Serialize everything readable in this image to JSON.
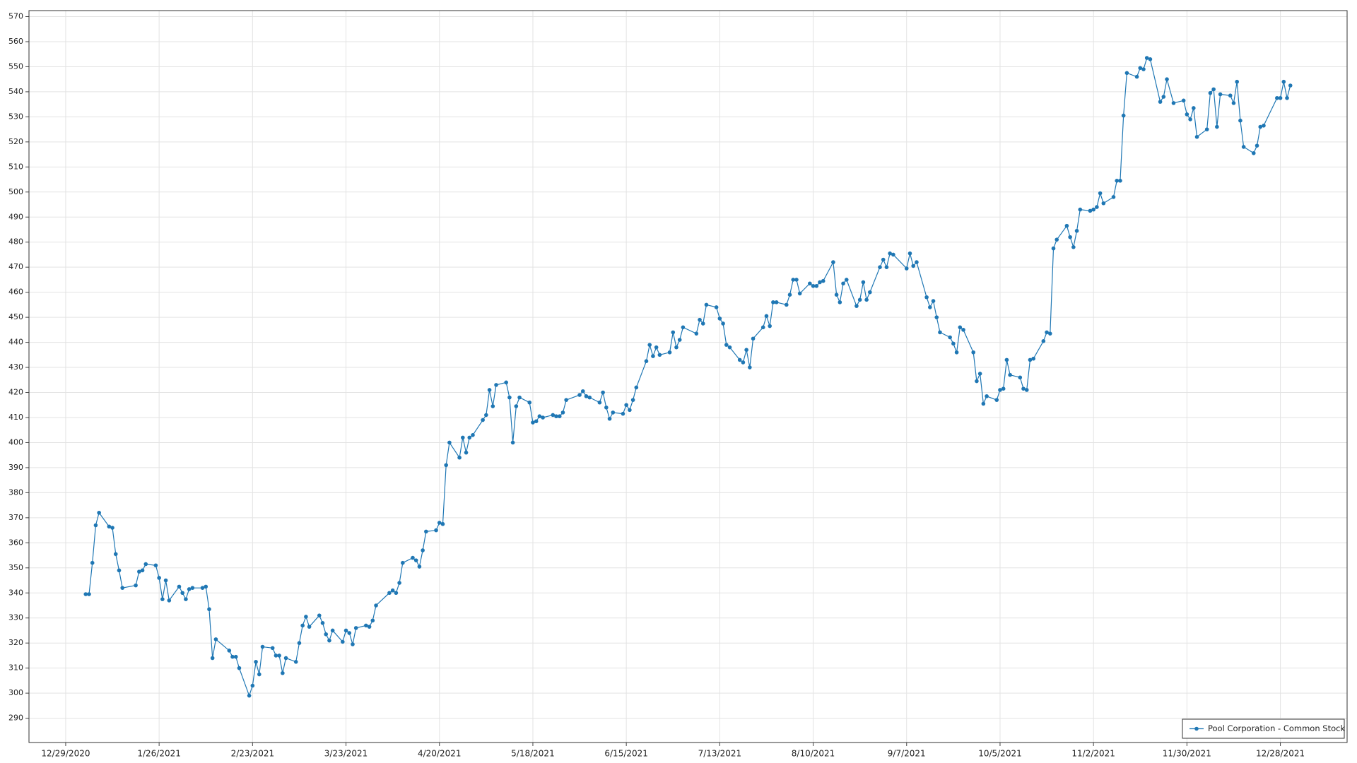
{
  "chart_data": {
    "type": "line",
    "x": [
      "1/4/2021",
      "1/5/2021",
      "1/6/2021",
      "1/7/2021",
      "1/8/2021",
      "1/11/2021",
      "1/12/2021",
      "1/13/2021",
      "1/14/2021",
      "1/15/2021",
      "1/19/2021",
      "1/20/2021",
      "1/21/2021",
      "1/22/2021",
      "1/25/2021",
      "1/26/2021",
      "1/27/2021",
      "1/28/2021",
      "1/29/2021",
      "2/1/2021",
      "2/2/2021",
      "2/3/2021",
      "2/4/2021",
      "2/5/2021",
      "2/8/2021",
      "2/9/2021",
      "2/10/2021",
      "2/11/2021",
      "2/12/2021",
      "2/16/2021",
      "2/17/2021",
      "2/18/2021",
      "2/19/2021",
      "2/22/2021",
      "2/23/2021",
      "2/24/2021",
      "2/25/2021",
      "2/26/2021",
      "3/1/2021",
      "3/2/2021",
      "3/3/2021",
      "3/4/2021",
      "3/5/2021",
      "3/8/2021",
      "3/9/2021",
      "3/10/2021",
      "3/11/2021",
      "3/12/2021",
      "3/15/2021",
      "3/16/2021",
      "3/17/2021",
      "3/18/2021",
      "3/19/2021",
      "3/22/2021",
      "3/23/2021",
      "3/24/2021",
      "3/25/2021",
      "3/26/2021",
      "3/29/2021",
      "3/30/2021",
      "3/31/2021",
      "4/1/2021",
      "4/5/2021",
      "4/6/2021",
      "4/7/2021",
      "4/8/2021",
      "4/9/2021",
      "4/12/2021",
      "4/13/2021",
      "4/14/2021",
      "4/15/2021",
      "4/16/2021",
      "4/19/2021",
      "4/20/2021",
      "4/21/2021",
      "4/22/2021",
      "4/23/2021",
      "4/26/2021",
      "4/27/2021",
      "4/28/2021",
      "4/29/2021",
      "4/30/2021",
      "5/3/2021",
      "5/4/2021",
      "5/5/2021",
      "5/6/2021",
      "5/7/2021",
      "5/10/2021",
      "5/11/2021",
      "5/12/2021",
      "5/13/2021",
      "5/14/2021",
      "5/17/2021",
      "5/18/2021",
      "5/19/2021",
      "5/20/2021",
      "5/21/2021",
      "5/24/2021",
      "5/25/2021",
      "5/26/2021",
      "5/27/2021",
      "5/28/2021",
      "6/1/2021",
      "6/2/2021",
      "6/3/2021",
      "6/4/2021",
      "6/7/2021",
      "6/8/2021",
      "6/9/2021",
      "6/10/2021",
      "6/11/2021",
      "6/14/2021",
      "6/15/2021",
      "6/16/2021",
      "6/17/2021",
      "6/18/2021",
      "6/21/2021",
      "6/22/2021",
      "6/23/2021",
      "6/24/2021",
      "6/25/2021",
      "6/28/2021",
      "6/29/2021",
      "6/30/2021",
      "7/1/2021",
      "7/2/2021",
      "7/6/2021",
      "7/7/2021",
      "7/8/2021",
      "7/9/2021",
      "7/12/2021",
      "7/13/2021",
      "7/14/2021",
      "7/15/2021",
      "7/16/2021",
      "7/19/2021",
      "7/20/2021",
      "7/21/2021",
      "7/22/2021",
      "7/23/2021",
      "7/26/2021",
      "7/27/2021",
      "7/28/2021",
      "7/29/2021",
      "7/30/2021",
      "8/2/2021",
      "8/3/2021",
      "8/4/2021",
      "8/5/2021",
      "8/6/2021",
      "8/9/2021",
      "8/10/2021",
      "8/11/2021",
      "8/12/2021",
      "8/13/2021",
      "8/16/2021",
      "8/17/2021",
      "8/18/2021",
      "8/19/2021",
      "8/20/2021",
      "8/23/2021",
      "8/24/2021",
      "8/25/2021",
      "8/26/2021",
      "8/27/2021",
      "8/30/2021",
      "8/31/2021",
      "9/1/2021",
      "9/2/2021",
      "9/3/2021",
      "9/7/2021",
      "9/8/2021",
      "9/9/2021",
      "9/10/2021",
      "9/13/2021",
      "9/14/2021",
      "9/15/2021",
      "9/16/2021",
      "9/17/2021",
      "9/20/2021",
      "9/21/2021",
      "9/22/2021",
      "9/23/2021",
      "9/24/2021",
      "9/27/2021",
      "9/28/2021",
      "9/29/2021",
      "9/30/2021",
      "10/1/2021",
      "10/4/2021",
      "10/5/2021",
      "10/6/2021",
      "10/7/2021",
      "10/8/2021",
      "10/11/2021",
      "10/12/2021",
      "10/13/2021",
      "10/14/2021",
      "10/15/2021",
      "10/18/2021",
      "10/19/2021",
      "10/20/2021",
      "10/21/2021",
      "10/22/2021",
      "10/25/2021",
      "10/26/2021",
      "10/27/2021",
      "10/28/2021",
      "10/29/2021",
      "11/1/2021",
      "11/2/2021",
      "11/3/2021",
      "11/4/2021",
      "11/5/2021",
      "11/8/2021",
      "11/9/2021",
      "11/10/2021",
      "11/11/2021",
      "11/12/2021",
      "11/15/2021",
      "11/16/2021",
      "11/17/2021",
      "11/18/2021",
      "11/19/2021",
      "11/22/2021",
      "11/23/2021",
      "11/24/2021",
      "11/26/2021",
      "11/29/2021",
      "11/30/2021",
      "12/1/2021",
      "12/2/2021",
      "12/3/2021",
      "12/6/2021",
      "12/7/2021",
      "12/8/2021",
      "12/9/2021",
      "12/10/2021",
      "12/13/2021",
      "12/14/2021",
      "12/15/2021",
      "12/16/2021",
      "12/17/2021",
      "12/20/2021",
      "12/21/2021",
      "12/22/2021",
      "12/23/2021",
      "12/27/2021",
      "12/28/2021",
      "12/29/2021",
      "12/30/2021",
      "12/31/2021"
    ],
    "series": [
      {
        "name": "Pool Corporation - Common Stock",
        "color": "#1f77b4",
        "values": [
          339.5,
          339.5,
          352,
          367,
          372,
          366.5,
          366,
          355.5,
          349,
          342,
          343,
          348.5,
          349,
          351.5,
          351,
          346,
          337.5,
          345,
          337,
          342.5,
          340,
          337.5,
          341.5,
          342,
          342,
          342.5,
          333.5,
          314,
          321.5,
          317,
          314.5,
          314.5,
          310,
          299,
          303,
          312.5,
          307.5,
          318.5,
          318,
          315,
          315,
          308,
          314,
          312.5,
          320,
          327,
          330.5,
          326.5,
          331,
          328,
          323.5,
          321,
          325,
          320.5,
          325,
          324,
          319.5,
          326,
          327,
          326.5,
          329,
          335,
          340,
          341,
          340,
          344,
          352,
          354,
          353,
          350.5,
          357,
          364.5,
          365,
          368,
          367.5,
          391,
          400,
          394,
          402,
          396,
          402,
          403,
          409,
          411,
          421,
          414.5,
          423,
          424,
          418,
          400,
          414.5,
          418,
          416,
          408,
          408.5,
          410.5,
          410,
          411,
          410.5,
          410.5,
          412,
          417,
          419,
          420.5,
          418.5,
          418,
          416,
          420,
          414,
          409.5,
          412,
          411.5,
          415,
          413,
          417,
          422,
          432.5,
          439,
          434.5,
          438,
          435,
          436,
          444,
          438,
          441,
          446,
          443.5,
          449,
          447.5,
          455,
          454,
          449.5,
          447.5,
          439,
          438,
          433,
          432,
          437,
          430,
          441.5,
          446,
          450.5,
          446.5,
          456,
          456,
          455,
          459,
          465,
          465,
          459.5,
          463.5,
          462.5,
          462.5,
          464,
          464.5,
          472,
          459,
          456,
          463.5,
          465,
          454.5,
          457,
          464,
          457,
          460,
          470,
          473,
          470,
          475.5,
          475,
          469.5,
          475.5,
          470.5,
          472,
          458,
          454,
          456.5,
          450,
          444,
          442,
          439.5,
          436,
          446,
          445,
          436,
          424.5,
          427.5,
          415.5,
          418.5,
          417,
          421,
          421.5,
          433,
          427,
          426,
          421.5,
          421,
          433,
          433.5,
          440.5,
          444,
          443.5,
          477.5,
          481,
          486.5,
          482,
          478,
          484.5,
          493,
          492.5,
          493,
          494,
          499.5,
          495.5,
          498,
          504.5,
          504.5,
          530.5,
          547.5,
          546,
          549.5,
          549,
          553.5,
          553,
          536,
          538,
          545,
          535.5,
          536.5,
          531,
          529,
          533.5,
          522,
          525,
          539.5,
          541,
          526,
          539,
          538.5,
          535.5,
          544,
          528.5,
          518,
          515.5,
          518.5,
          526,
          526.5,
          537.5,
          537.5,
          544,
          537.5,
          542.5
        ]
      }
    ],
    "xlim": [
      "12/18/2020",
      "1/17/2022"
    ],
    "xticks": [
      "12/29/2020",
      "1/26/2021",
      "2/23/2021",
      "3/23/2021",
      "4/20/2021",
      "5/18/2021",
      "6/15/2021",
      "7/13/2021",
      "8/10/2021",
      "9/7/2021",
      "10/5/2021",
      "11/2/2021",
      "11/30/2021",
      "12/28/2021"
    ],
    "ylim": [
      280.3,
      572.4
    ],
    "yticks": [
      290,
      300,
      310,
      320,
      330,
      340,
      350,
      360,
      370,
      380,
      390,
      400,
      410,
      420,
      430,
      440,
      450,
      460,
      470,
      480,
      490,
      500,
      510,
      520,
      530,
      540,
      550,
      560,
      570
    ],
    "grid": true,
    "legend": "lower right"
  }
}
